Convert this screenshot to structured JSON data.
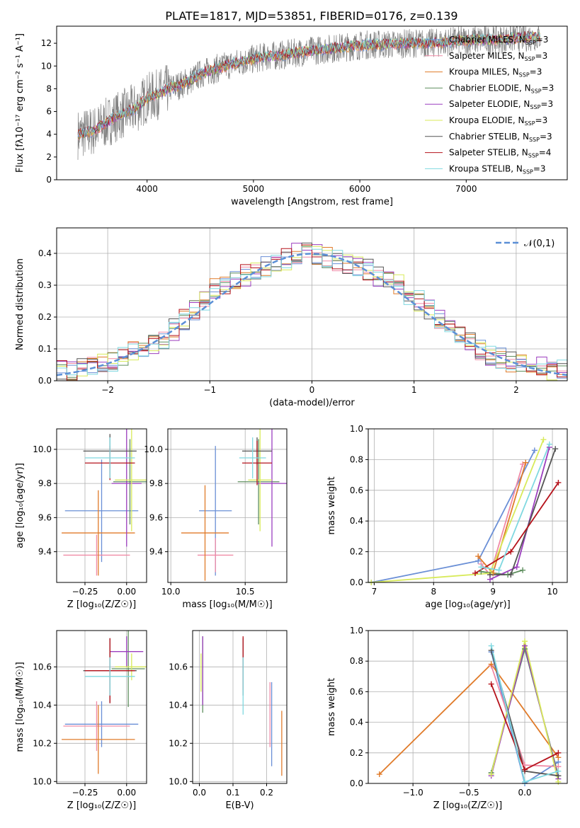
{
  "figure_title": "PLATE=1817, MJD=53851, FIBERID=0176, z=0.139",
  "models": [
    {
      "name": "Chabrier MILES",
      "nssp": "3",
      "color": "#6a8fd6"
    },
    {
      "name": "Salpeter MILES",
      "nssp": "3",
      "color": "#f08aa6"
    },
    {
      "name": "Kroupa MILES",
      "nssp": "3",
      "color": "#e07b2a"
    },
    {
      "name": "Chabrier ELODIE",
      "nssp": "3",
      "color": "#5f8f5f"
    },
    {
      "name": "Salpeter ELODIE",
      "nssp": "3",
      "color": "#9c3fbf"
    },
    {
      "name": "Kroupa ELODIE",
      "nssp": "3",
      "color": "#d8ea5a"
    },
    {
      "name": "Chabrier STELIB",
      "nssp": "3",
      "color": "#555555"
    },
    {
      "name": "Salpeter STELIB",
      "nssp": "4",
      "color": "#b5121b"
    },
    {
      "name": "Kroupa STELIB",
      "nssp": "3",
      "color": "#7fd8e0"
    }
  ],
  "chart_data": [
    {
      "id": "spectrum",
      "type": "line",
      "title": "",
      "xlabel": "wavelength [Angstrom, rest frame]",
      "ylabel": "Flux [fλ10⁻¹⁷ erg cm⁻² s⁻¹ A⁻¹]",
      "xlim": [
        3150,
        7950
      ],
      "ylim": [
        0,
        13.5
      ],
      "xticks": [
        4000,
        5000,
        6000,
        7000
      ],
      "yticks": [
        0,
        2,
        4,
        6,
        8,
        10,
        12
      ],
      "legend": "inside right",
      "grid": false,
      "x": [
        3350,
        3500,
        3700,
        3900,
        4000,
        4100,
        4200,
        4300,
        4400,
        4500,
        4700,
        4900,
        5100,
        5300,
        5500,
        5700,
        5900,
        6100,
        6300,
        6500,
        6700,
        6900,
        7100,
        7300,
        7500,
        7700
      ],
      "continuum": [
        4.0,
        4.3,
        5.5,
        6.3,
        7.2,
        7.5,
        8.0,
        8.3,
        8.7,
        9.3,
        9.9,
        10.4,
        10.8,
        11.0,
        11.3,
        11.5,
        11.7,
        11.9,
        11.9,
        12.0,
        12.0,
        12.2,
        12.3,
        12.3,
        12.5,
        12.6
      ]
    },
    {
      "id": "residual_hist",
      "type": "line",
      "xlabel": "(data-model)/error",
      "ylabel": "Normed distribution",
      "xlim": [
        -2.5,
        2.5
      ],
      "ylim": [
        0,
        0.48
      ],
      "xticks": [
        -2,
        -1,
        0,
        1,
        2
      ],
      "yticks": [
        0.0,
        0.1,
        0.2,
        0.3,
        0.4
      ],
      "grid": true,
      "legend": "𝒩(0,1)",
      "bin_width": 0.1,
      "bin_start": -2.5,
      "hist": [
        0.03,
        0.03,
        0.04,
        0.05,
        0.05,
        0.06,
        0.07,
        0.09,
        0.1,
        0.12,
        0.13,
        0.16,
        0.19,
        0.22,
        0.25,
        0.29,
        0.3,
        0.32,
        0.33,
        0.34,
        0.36,
        0.37,
        0.38,
        0.4,
        0.41,
        0.4,
        0.39,
        0.38,
        0.37,
        0.36,
        0.35,
        0.33,
        0.32,
        0.3,
        0.27,
        0.25,
        0.22,
        0.19,
        0.16,
        0.14,
        0.12,
        0.1,
        0.08,
        0.07,
        0.06,
        0.05,
        0.04,
        0.04,
        0.03,
        0.03
      ]
    },
    {
      "id": "age_vs_Z",
      "type": "scatter",
      "xlabel": "Z [log₁₀(Z/Z☉)]",
      "ylabel": "age  [log₁₀(age/yr)]",
      "xlim": [
        -0.42,
        0.12
      ],
      "ylim": [
        9.22,
        10.12
      ],
      "xticks": [
        -0.25,
        0.0
      ],
      "xticklabels": [
        "−0.25",
        "0.00"
      ],
      "yticks": [
        9.4,
        9.6,
        9.8,
        10.0
      ],
      "grid": true,
      "points": [
        {
          "x": -0.15,
          "y": 9.64,
          "xerr": 0.22,
          "yerr": 0.3
        },
        {
          "x": -0.18,
          "y": 9.38,
          "xerr": 0.2,
          "yerr": 0.12
        },
        {
          "x": -0.17,
          "y": 9.51,
          "xerr": 0.22,
          "yerr": 0.25
        },
        {
          "x": 0.02,
          "y": 9.81,
          "xerr": 0.1,
          "yerr": 0.25
        },
        {
          "x": 0.0,
          "y": 9.8,
          "xerr": 0.09,
          "yerr": 0.37
        },
        {
          "x": 0.03,
          "y": 9.82,
          "xerr": 0.1,
          "yerr": 0.3
        },
        {
          "x": -0.1,
          "y": 9.99,
          "xerr": 0.16,
          "yerr": 0.1
        },
        {
          "x": -0.1,
          "y": 9.92,
          "xerr": 0.15,
          "yerr": 0.1
        },
        {
          "x": -0.1,
          "y": 9.95,
          "xerr": 0.15,
          "yerr": 0.12
        }
      ]
    },
    {
      "id": "age_vs_mass",
      "type": "scatter",
      "xlabel": "mass [log₁₀(M/M☉)]",
      "ylabel": "",
      "xlim": [
        9.98,
        10.78
      ],
      "ylim": [
        9.22,
        10.12
      ],
      "xticks": [
        10.0,
        10.5
      ],
      "yticks": [
        9.4,
        9.6,
        9.8,
        10.0
      ],
      "grid": true,
      "points": [
        {
          "x": 10.3,
          "y": 9.64,
          "xerr": 0.11,
          "yerr": 0.38
        },
        {
          "x": 10.3,
          "y": 9.38,
          "xerr": 0.12,
          "yerr": 0.1
        },
        {
          "x": 10.23,
          "y": 9.51,
          "xerr": 0.16,
          "yerr": 0.28
        },
        {
          "x": 10.59,
          "y": 9.81,
          "xerr": 0.14,
          "yerr": 0.25
        },
        {
          "x": 10.68,
          "y": 9.8,
          "xerr": 0.1,
          "yerr": 0.37
        },
        {
          "x": 10.6,
          "y": 9.82,
          "xerr": 0.08,
          "yerr": 0.3
        },
        {
          "x": 10.58,
          "y": 9.99,
          "xerr": 0.1,
          "yerr": 0.08
        },
        {
          "x": 10.58,
          "y": 9.92,
          "xerr": 0.1,
          "yerr": 0.13
        },
        {
          "x": 10.55,
          "y": 9.95,
          "xerr": 0.09,
          "yerr": 0.12
        }
      ]
    },
    {
      "id": "mass_weight_vs_age",
      "type": "line",
      "xlabel": "age  [log₁₀(age/yr)]",
      "ylabel": "mass weight",
      "xlim": [
        6.9,
        10.25
      ],
      "ylim": [
        0,
        1.0
      ],
      "xticks": [
        7,
        8,
        9,
        10
      ],
      "yticks": [
        0.0,
        0.2,
        0.4,
        0.6,
        0.8,
        1.0
      ],
      "grid": true,
      "series": [
        {
          "x": [
            6.95,
            8.75,
            9.7
          ],
          "y": [
            0.0,
            0.14,
            0.86
          ]
        },
        {
          "x": [
            8.8,
            8.95,
            9.5
          ],
          "y": [
            0.12,
            0.05,
            0.77
          ]
        },
        {
          "x": [
            8.75,
            9.0,
            9.55
          ],
          "y": [
            0.17,
            0.06,
            0.78
          ]
        },
        {
          "x": [
            8.8,
            9.25,
            9.5
          ],
          "y": [
            0.07,
            0.05,
            0.08
          ]
        },
        {
          "x": [
            8.95,
            9.4,
            9.95
          ],
          "y": [
            0.02,
            0.1,
            0.88
          ]
        },
        {
          "x": [
            6.95,
            8.95,
            9.85
          ],
          "y": [
            0.0,
            0.06,
            0.93
          ]
        },
        {
          "x": [
            8.95,
            9.3,
            10.05
          ],
          "y": [
            0.05,
            0.05,
            0.87
          ]
        },
        {
          "x": [
            8.7,
            9.3,
            10.1
          ],
          "y": [
            0.06,
            0.2,
            0.65
          ]
        },
        {
          "x": [
            8.8,
            9.1,
            9.95
          ],
          "y": [
            0.1,
            0.08,
            0.9
          ]
        }
      ]
    },
    {
      "id": "mass_vs_Z",
      "type": "scatter",
      "xlabel": "Z [log₁₀(Z/Z☉)]",
      "ylabel": "mass [log₁₀(M/M☉)]",
      "xlim": [
        -0.42,
        0.12
      ],
      "ylim": [
        9.99,
        10.79
      ],
      "xticks": [
        -0.25,
        0.0
      ],
      "xticklabels": [
        "−0.25",
        "0.00"
      ],
      "yticks": [
        10.0,
        10.2,
        10.4,
        10.6
      ],
      "grid": true,
      "points": [
        {
          "x": -0.15,
          "y": 10.3,
          "xerr": 0.22,
          "yerr": 0.12
        },
        {
          "x": -0.18,
          "y": 10.29,
          "xerr": 0.2,
          "yerr": 0.13
        },
        {
          "x": -0.17,
          "y": 10.22,
          "xerr": 0.22,
          "yerr": 0.18
        },
        {
          "x": 0.01,
          "y": 10.59,
          "xerr": 0.1,
          "yerr": 0.2
        },
        {
          "x": 0.0,
          "y": 10.68,
          "xerr": 0.1,
          "yerr": 0.08
        },
        {
          "x": 0.03,
          "y": 10.6,
          "xerr": 0.1,
          "yerr": 0.07
        },
        {
          "x": -0.1,
          "y": 10.58,
          "xerr": 0.16,
          "yerr": 0.17
        },
        {
          "x": -0.1,
          "y": 10.58,
          "xerr": 0.15,
          "yerr": 0.17
        },
        {
          "x": -0.1,
          "y": 10.55,
          "xerr": 0.15,
          "yerr": 0.1
        }
      ]
    },
    {
      "id": "mass_vs_ebv",
      "type": "scatter",
      "xlabel": "E(B-V)",
      "ylabel": "",
      "xlim": [
        -0.02,
        0.26
      ],
      "ylim": [
        9.99,
        10.79
      ],
      "xticks": [
        0.0,
        0.1,
        0.2
      ],
      "yticks": [
        10.0,
        10.2,
        10.4,
        10.6
      ],
      "grid": true,
      "points": [
        {
          "x": 0.215,
          "y": 10.3,
          "yerr": 0.22
        },
        {
          "x": 0.21,
          "y": 10.35,
          "yerr": 0.17
        },
        {
          "x": 0.245,
          "y": 10.2,
          "yerr": 0.17
        },
        {
          "x": 0.01,
          "y": 10.56,
          "yerr": 0.2
        },
        {
          "x": 0.01,
          "y": 10.58,
          "yerr": 0.18
        },
        {
          "x": 0.005,
          "y": 10.57,
          "yerr": 0.1
        },
        {
          "x": 0.13,
          "y": 10.6,
          "yerr": 0.15
        },
        {
          "x": 0.13,
          "y": 10.62,
          "yerr": 0.14
        },
        {
          "x": 0.13,
          "y": 10.5,
          "yerr": 0.15
        }
      ]
    },
    {
      "id": "mass_weight_vs_Z",
      "type": "line",
      "xlabel": "Z [log₁₀(Z/Z☉)]",
      "ylabel": "mass weight",
      "xlim": [
        -1.4,
        0.38
      ],
      "ylim": [
        0,
        1.0
      ],
      "xticks": [
        -1.0,
        -0.5,
        0.0
      ],
      "xticklabels": [
        "−1.0",
        "−0.5",
        "0.0"
      ],
      "yticks": [
        0.0,
        0.2,
        0.4,
        0.6,
        0.8,
        1.0
      ],
      "grid": true,
      "series": [
        {
          "x": [
            -0.3,
            0.0,
            0.3
          ],
          "y": [
            0.86,
            0.0,
            0.14
          ]
        },
        {
          "x": [
            -0.3,
            0.0,
            0.3
          ],
          "y": [
            0.77,
            0.12,
            0.11
          ]
        },
        {
          "x": [
            -1.3,
            -0.3,
            0.3
          ],
          "y": [
            0.06,
            0.78,
            0.17
          ]
        },
        {
          "x": [
            -0.3,
            0.0,
            0.3
          ],
          "y": [
            0.07,
            0.88,
            0.05
          ]
        },
        {
          "x": [
            -0.3,
            0.0,
            0.3
          ],
          "y": [
            0.05,
            0.9,
            0.03
          ]
        },
        {
          "x": [
            -0.3,
            0.0,
            0.3
          ],
          "y": [
            0.06,
            0.93,
            0.01
          ]
        },
        {
          "x": [
            -0.3,
            0.0,
            0.3
          ],
          "y": [
            0.87,
            0.08,
            0.05
          ]
        },
        {
          "x": [
            -0.3,
            0.0,
            0.3
          ],
          "y": [
            0.65,
            0.09,
            0.2
          ]
        },
        {
          "x": [
            -0.3,
            0.0,
            0.3
          ],
          "y": [
            0.9,
            0.01,
            0.08
          ]
        }
      ]
    }
  ]
}
